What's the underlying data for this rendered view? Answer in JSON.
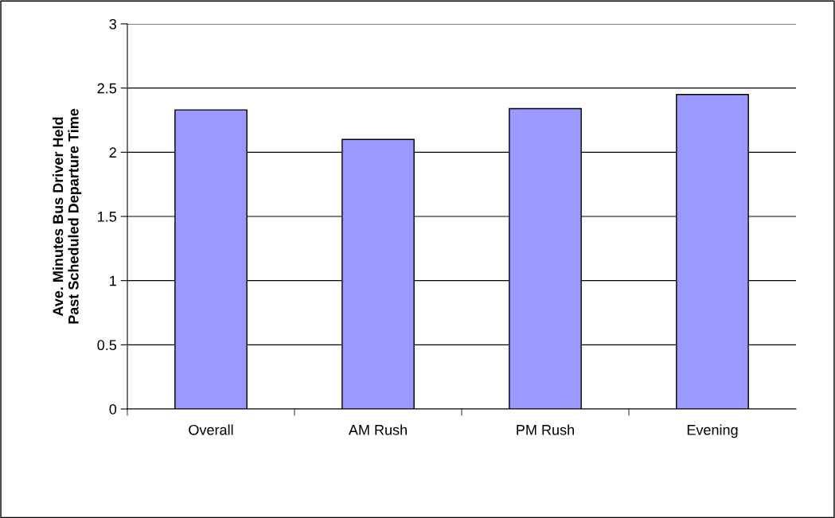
{
  "chart_data": {
    "type": "bar",
    "ylabel": "Ave. Minutes Bus Driver Held\nPast Scheduled Departure Time",
    "categories": [
      "Overall",
      "AM Rush",
      "PM Rush",
      "Evening"
    ],
    "values": [
      2.33,
      2.1,
      2.34,
      2.45
    ],
    "color": "#9999ff",
    "ylim": [
      0,
      3
    ],
    "yticks": [
      0,
      0.5,
      1,
      1.5,
      2,
      2.5,
      3
    ],
    "grid": "y"
  }
}
